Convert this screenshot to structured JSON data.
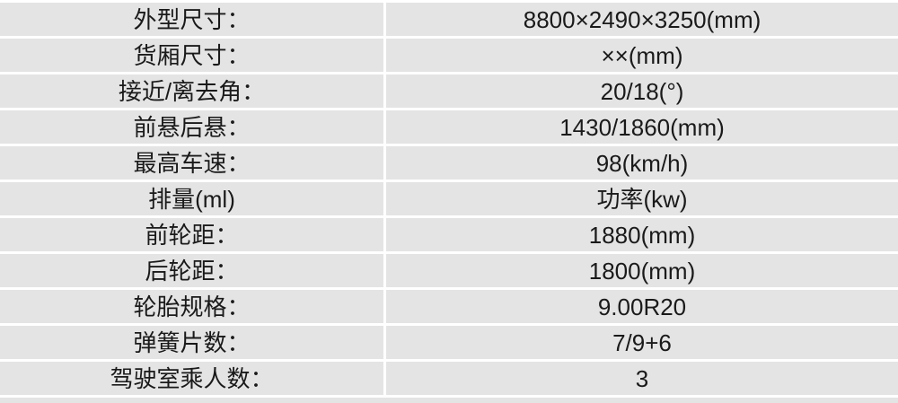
{
  "table": {
    "description": "vehicle-specification-table",
    "columns": [
      "label",
      "value"
    ],
    "rows": [
      {
        "label": "外型尺寸：",
        "value": "8800×2490×3250(mm)"
      },
      {
        "label": "货厢尺寸：",
        "value": "××(mm)"
      },
      {
        "label": "接近/离去角：",
        "value": "20/18(°)"
      },
      {
        "label": "前悬后悬：",
        "value": "1430/1860(mm)"
      },
      {
        "label": "最高车速：",
        "value": "98(km/h)"
      },
      {
        "label": "排量(ml)",
        "value": "功率(kw)"
      },
      {
        "label": "前轮距：",
        "value": "1880(mm)"
      },
      {
        "label": "后轮距：",
        "value": "1800(mm)"
      },
      {
        "label": "轮胎规格：",
        "value": "9.00R20"
      },
      {
        "label": "弹簧片数：",
        "value": "7/9+6"
      },
      {
        "label": "驾驶室乘人数：",
        "value": "3"
      }
    ],
    "colors": {
      "cell_bg": "#e4e4e4",
      "grid_line": "#ffffff",
      "text": "#1a1a1a"
    }
  }
}
